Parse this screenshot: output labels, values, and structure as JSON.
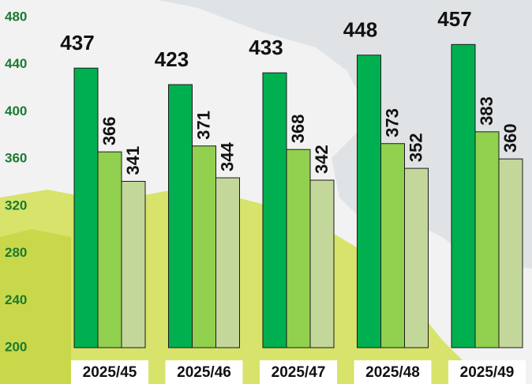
{
  "chart_data": {
    "type": "bar",
    "categories": [
      "2025/45",
      "2025/46",
      "2025/47",
      "2025/48",
      "2025/49"
    ],
    "series": [
      {
        "color": "#00b050",
        "values": [
          437,
          423,
          433,
          448,
          457
        ]
      },
      {
        "color": "#92d050",
        "values": [
          366,
          371,
          368,
          373,
          383
        ]
      },
      {
        "color": "#c4d79b",
        "values": [
          341,
          344,
          342,
          352,
          360
        ]
      }
    ],
    "ylim": [
      200,
      480
    ],
    "yticks": [
      200,
      240,
      280,
      320,
      360,
      400,
      440,
      480
    ],
    "grid": false
  }
}
